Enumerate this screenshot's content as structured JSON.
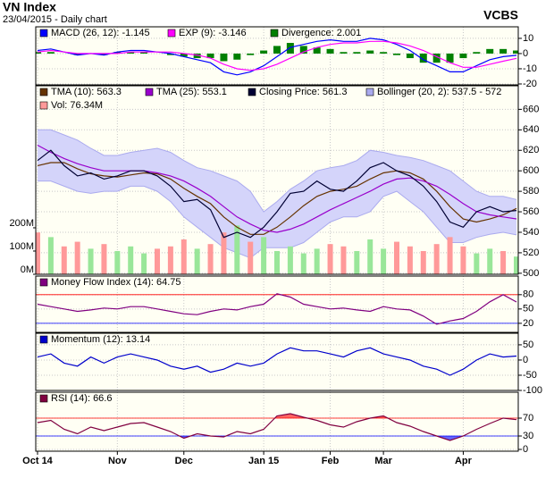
{
  "chart_data": [
    {
      "type": "macd",
      "title": "VN Index",
      "subtitle": "23/04/2015 - Daily chart",
      "source": "VCBS",
      "ylim": [
        -20.6,
        17.6
      ],
      "yticks": [
        10,
        0,
        -10,
        -20
      ],
      "series": [
        {
          "name": "MACD (26, 12): -1.145",
          "color": "#0000ff",
          "values": [
            2,
            3,
            1,
            -1,
            0,
            -1,
            1,
            2,
            2,
            1,
            0,
            -2,
            -4,
            -6,
            -12,
            -14,
            -12,
            -8,
            -2,
            4,
            6,
            8,
            9,
            8,
            8,
            10,
            9,
            6,
            2,
            -4,
            -8,
            -12,
            -12,
            -8,
            -4,
            -2,
            -1.145
          ]
        },
        {
          "name": "EXP (9): -3.146",
          "color": "#ff00ff",
          "values": [
            1,
            2,
            1,
            0,
            0,
            0,
            0,
            1,
            1,
            1,
            1,
            0,
            -1,
            -3,
            -7,
            -10,
            -11,
            -10,
            -7,
            -3,
            1,
            4,
            6,
            7,
            7,
            8,
            8,
            7,
            5,
            2,
            -2,
            -6,
            -9,
            -9,
            -7,
            -5,
            -3.146
          ]
        },
        {
          "name": "Divergence: 2.001",
          "color": "#008000",
          "type": "bar",
          "values": [
            1,
            1,
            0,
            -1,
            0,
            -1,
            1,
            1,
            1,
            0,
            -1,
            -2,
            -3,
            -3,
            -5,
            -4,
            -1,
            2,
            5,
            7,
            5,
            4,
            3,
            1,
            1,
            2,
            1,
            -1,
            -3,
            -6,
            -6,
            -6,
            -3,
            1,
            3,
            3,
            2.001
          ]
        }
      ]
    },
    {
      "type": "price",
      "ylim": [
        499,
        683
      ],
      "yticks": [
        660,
        640,
        620,
        600,
        580,
        560,
        540,
        520,
        500
      ],
      "y2lim": [
        0,
        811000000
      ],
      "y2ticks": [
        {
          "value": 200000000,
          "label": "200M"
        },
        {
          "value": 100000000,
          "label": "100M"
        },
        {
          "value": 0,
          "label": "0M"
        }
      ],
      "series": [
        {
          "name": "Bollinger (20, 2): 537.5 - 572",
          "color": "#aaaaee",
          "type": "band",
          "upper": [
            640,
            640,
            635,
            630,
            622,
            615,
            615,
            618,
            620,
            622,
            618,
            610,
            603,
            600,
            595,
            590,
            580,
            560,
            570,
            582,
            590,
            600,
            603,
            605,
            610,
            620,
            618,
            615,
            613,
            610,
            605,
            600,
            590,
            580,
            575,
            575,
            572
          ],
          "lower": [
            590,
            590,
            585,
            580,
            578,
            580,
            580,
            585,
            585,
            580,
            570,
            555,
            545,
            535,
            525,
            520,
            515,
            525,
            525,
            525,
            530,
            540,
            550,
            555,
            555,
            560,
            575,
            580,
            570,
            560,
            545,
            530,
            530,
            535,
            538,
            540,
            537.5
          ]
        },
        {
          "name": "Vol: 76.34M",
          "color": "#ff9999",
          "up_color": "#99e699",
          "type": "bar",
          "axis": "y2",
          "values": [
            180000000,
            160000000,
            120000000,
            140000000,
            110000000,
            130000000,
            100000000,
            120000000,
            90000000,
            110000000,
            120000000,
            150000000,
            110000000,
            130000000,
            180000000,
            210000000,
            140000000,
            160000000,
            100000000,
            120000000,
            90000000,
            110000000,
            130000000,
            120000000,
            100000000,
            150000000,
            110000000,
            140000000,
            120000000,
            100000000,
            130000000,
            160000000,
            120000000,
            90000000,
            110000000,
            100000000,
            76340000
          ]
        },
        {
          "name": "TMA (10): 563.3",
          "color": "#663300",
          "values": [
            605,
            608,
            608,
            602,
            597,
            595,
            594,
            596,
            598,
            597,
            592,
            583,
            575,
            568,
            555,
            545,
            538,
            538,
            545,
            555,
            566,
            575,
            580,
            582,
            585,
            592,
            598,
            600,
            598,
            592,
            580,
            565,
            553,
            550,
            553,
            557,
            563.3
          ]
        },
        {
          "name": "TMA (25): 553.1",
          "color": "#9900cc",
          "values": [
            625,
            618,
            612,
            607,
            603,
            600,
            600,
            600,
            600,
            598,
            595,
            590,
            583,
            575,
            565,
            555,
            548,
            542,
            540,
            543,
            548,
            555,
            562,
            568,
            574,
            580,
            587,
            592,
            593,
            590,
            585,
            577,
            568,
            560,
            557,
            555,
            553.1
          ]
        },
        {
          "name": "Closing Price: 561.3",
          "color": "#000033",
          "values": [
            610,
            620,
            605,
            595,
            598,
            592,
            595,
            600,
            600,
            595,
            585,
            570,
            572,
            562,
            535,
            540,
            535,
            545,
            560,
            578,
            580,
            590,
            582,
            580,
            590,
            603,
            608,
            600,
            595,
            585,
            570,
            550,
            545,
            560,
            565,
            560,
            561.3
          ]
        }
      ]
    },
    {
      "type": "line",
      "ylim": [
        1,
        119
      ],
      "yticks": [
        80,
        50,
        20
      ],
      "levels": [
        {
          "value": 80,
          "color": "#ff0000",
          "fill": "above"
        },
        {
          "value": 20,
          "color": "#0000ff",
          "fill": "below"
        }
      ],
      "series": [
        {
          "name": "Money Flow Index (14): 64.75",
          "color": "#800080",
          "values": [
            60,
            55,
            50,
            45,
            48,
            52,
            50,
            55,
            55,
            50,
            45,
            40,
            38,
            45,
            50,
            48,
            55,
            60,
            82,
            75,
            60,
            55,
            50,
            52,
            48,
            45,
            55,
            50,
            48,
            35,
            18,
            25,
            30,
            45,
            65,
            80,
            64.75
          ]
        }
      ]
    },
    {
      "type": "line",
      "ylim": [
        -100,
        88
      ],
      "yticks": [
        50,
        0,
        -50,
        -100
      ],
      "series": [
        {
          "name": "Momentum (12): 13.14",
          "color": "#0000cc",
          "values": [
            10,
            20,
            -10,
            -20,
            10,
            -10,
            10,
            20,
            10,
            0,
            -20,
            -30,
            -20,
            -40,
            -30,
            -10,
            -20,
            -10,
            20,
            40,
            30,
            30,
            20,
            10,
            30,
            40,
            20,
            10,
            0,
            -20,
            -30,
            -50,
            -30,
            0,
            20,
            10,
            13.14
          ]
        }
      ]
    },
    {
      "type": "line",
      "ylim": [
        -4,
        128
      ],
      "yticks": [
        70,
        30,
        0
      ],
      "levels": [
        {
          "value": 70,
          "color": "#ff0000",
          "fill": "above"
        },
        {
          "value": 30,
          "color": "#0000ff",
          "fill": "below"
        }
      ],
      "xlim": [
        0,
        36
      ],
      "xticks": [
        {
          "value": 0,
          "label": "Oct 14"
        },
        {
          "value": 6,
          "label": "Nov"
        },
        {
          "value": 11,
          "label": "Dec"
        },
        {
          "value": 17,
          "label": "Jan 15"
        },
        {
          "value": 22,
          "label": "Feb"
        },
        {
          "value": 26,
          "label": "Mar"
        },
        {
          "value": 32,
          "label": "Apr"
        }
      ],
      "series": [
        {
          "name": "RSI (14): 66.6",
          "color": "#800040",
          "values": [
            60,
            65,
            45,
            35,
            50,
            42,
            50,
            58,
            60,
            50,
            40,
            25,
            35,
            30,
            28,
            40,
            35,
            45,
            75,
            80,
            72,
            65,
            55,
            50,
            62,
            70,
            75,
            60,
            52,
            40,
            30,
            20,
            30,
            45,
            58,
            70,
            66.6
          ]
        }
      ]
    }
  ]
}
